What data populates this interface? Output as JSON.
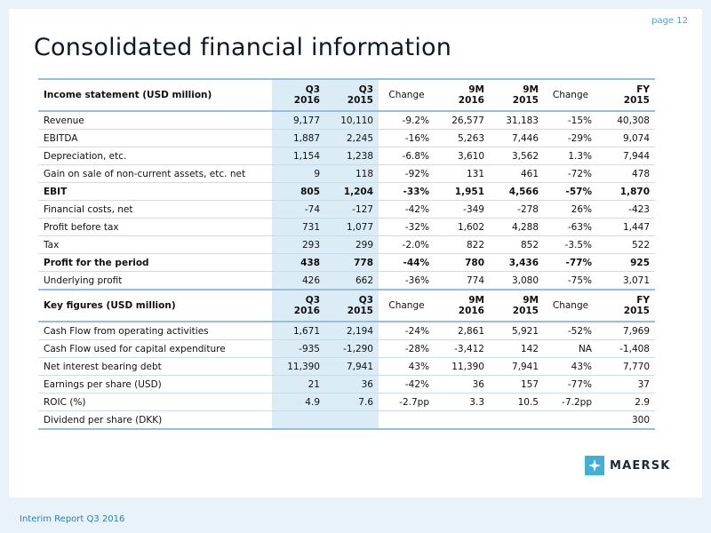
{
  "page_number": "page 12",
  "title": "Consolidated financial information",
  "income_statement": {
    "header": {
      "label": "Income statement (USD million)",
      "cols": [
        [
          "Q3",
          "2016"
        ],
        [
          "Q3",
          "2015"
        ],
        [
          "Change",
          ""
        ],
        [
          "9M",
          "2016"
        ],
        [
          "9M",
          "2015"
        ],
        [
          "Change",
          ""
        ],
        [
          "FY",
          "2015"
        ]
      ]
    },
    "rows": [
      {
        "label": "Revenue",
        "values": [
          "9,177",
          "10,110",
          "-9.2%",
          "26,577",
          "31,183",
          "-15%",
          "40,308"
        ],
        "bold": false
      },
      {
        "label": "EBITDA",
        "values": [
          "1,887",
          "2,245",
          "-16%",
          "5,263",
          "7,446",
          "-29%",
          "9,074"
        ],
        "bold": false
      },
      {
        "label": "Depreciation, etc.",
        "values": [
          "1,154",
          "1,238",
          "-6.8%",
          "3,610",
          "3,562",
          "1.3%",
          "7,944"
        ],
        "bold": false
      },
      {
        "label": "Gain on sale of non-current assets, etc. net",
        "values": [
          "9",
          "118",
          "-92%",
          "131",
          "461",
          "-72%",
          "478"
        ],
        "bold": false
      },
      {
        "label": "EBIT",
        "values": [
          "805",
          "1,204",
          "-33%",
          "1,951",
          "4,566",
          "-57%",
          "1,870"
        ],
        "bold": true
      },
      {
        "label": "Financial costs, net",
        "values": [
          "-74",
          "-127",
          "-42%",
          "-349",
          "-278",
          "26%",
          "-423"
        ],
        "bold": false
      },
      {
        "label": "Profit before tax",
        "values": [
          "731",
          "1,077",
          "-32%",
          "1,602",
          "4,288",
          "-63%",
          "1,447"
        ],
        "bold": false
      },
      {
        "label": "Tax",
        "values": [
          "293",
          "299",
          "-2.0%",
          "822",
          "852",
          "-3.5%",
          "522"
        ],
        "bold": false
      },
      {
        "label": "Profit for the period",
        "values": [
          "438",
          "778",
          "-44%",
          "780",
          "3,436",
          "-77%",
          "925"
        ],
        "bold": true
      },
      {
        "label": "Underlying profit",
        "values": [
          "426",
          "662",
          "-36%",
          "774",
          "3,080",
          "-75%",
          "3,071"
        ],
        "bold": false
      }
    ]
  },
  "key_figures": {
    "header": {
      "label": "Key figures (USD million)",
      "cols": [
        [
          "Q3",
          "2016"
        ],
        [
          "Q3",
          "2015"
        ],
        [
          "Change",
          ""
        ],
        [
          "9M",
          "2016"
        ],
        [
          "9M",
          "2015"
        ],
        [
          "Change",
          ""
        ],
        [
          "FY",
          "2015"
        ]
      ]
    },
    "rows": [
      {
        "label": "Cash Flow from operating activities",
        "values": [
          "1,671",
          "2,194",
          "-24%",
          "2,861",
          "5,921",
          "-52%",
          "7,969"
        ]
      },
      {
        "label": "Cash Flow used for capital expenditure",
        "values": [
          "-935",
          "-1,290",
          "-28%",
          "-3,412",
          "142",
          "NA",
          "-1,408"
        ]
      },
      {
        "label": "Net interest bearing debt",
        "values": [
          "11,390",
          "7,941",
          "43%",
          "11,390",
          "7,941",
          "43%",
          "7,770"
        ]
      },
      {
        "label": "Earnings per share (USD)",
        "values": [
          "21",
          "36",
          "-42%",
          "36",
          "157",
          "-77%",
          "37"
        ]
      },
      {
        "label": "ROIC (%)",
        "values": [
          "4.9",
          "7.6",
          "-2.7pp",
          "3.3",
          "10.5",
          "-7.2pp",
          "2.9"
        ]
      },
      {
        "label": "Dividend per share (DKK)",
        "values": [
          "",
          "",
          "",
          "",
          "",
          "",
          "300"
        ]
      }
    ]
  },
  "footer": "Interim Report Q3 2016",
  "logo_text": "MAERSK",
  "colors": {
    "accent": "#42b0d5",
    "table_shade": "#dcecf6",
    "rule": "#97bfd9"
  }
}
